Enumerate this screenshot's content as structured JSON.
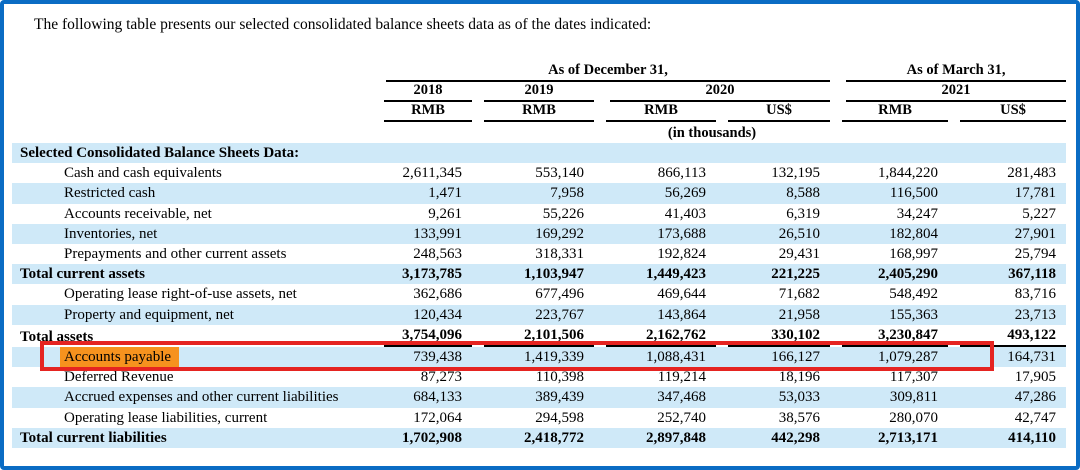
{
  "intro_text": "The following table presents our selected consolidated balance sheets data as of the dates indicated:",
  "table": {
    "group_headers": [
      {
        "label": "As of December 31,"
      },
      {
        "label": "As of March 31,"
      }
    ],
    "year_headers": [
      {
        "label": "2018"
      },
      {
        "label": "2019"
      },
      {
        "label": "2020"
      },
      {
        "label": "2021"
      }
    ],
    "currency_headers": [
      "RMB",
      "RMB",
      "RMB",
      "US$",
      "RMB",
      "US$"
    ],
    "units_note": "(in thousands)",
    "rows": [
      {
        "label": "Selected Consolidated Balance Sheets Data:",
        "indent": 0,
        "bold": true,
        "shaded": true,
        "underline": false,
        "highlight": false,
        "wrap": false,
        "values": [
          "",
          "",
          "",
          "",
          "",
          ""
        ]
      },
      {
        "label": "Cash and cash equivalents",
        "indent": 1,
        "bold": false,
        "shaded": false,
        "underline": false,
        "highlight": false,
        "wrap": false,
        "values": [
          "2,611,345",
          "553,140",
          "866,113",
          "132,195",
          "1,844,220",
          "281,483"
        ]
      },
      {
        "label": "Restricted cash",
        "indent": 1,
        "bold": false,
        "shaded": true,
        "underline": false,
        "highlight": false,
        "wrap": false,
        "values": [
          "1,471",
          "7,958",
          "56,269",
          "8,588",
          "116,500",
          "17,781"
        ]
      },
      {
        "label": "Accounts receivable, net",
        "indent": 1,
        "bold": false,
        "shaded": false,
        "underline": false,
        "highlight": false,
        "wrap": false,
        "values": [
          "9,261",
          "55,226",
          "41,403",
          "6,319",
          "34,247",
          "5,227"
        ]
      },
      {
        "label": "Inventories, net",
        "indent": 1,
        "bold": false,
        "shaded": true,
        "underline": false,
        "highlight": false,
        "wrap": false,
        "values": [
          "133,991",
          "169,292",
          "173,688",
          "26,510",
          "182,804",
          "27,901"
        ]
      },
      {
        "label": "Prepayments and other current assets",
        "indent": 1,
        "bold": false,
        "shaded": false,
        "underline": false,
        "highlight": false,
        "wrap": false,
        "values": [
          "248,563",
          "318,331",
          "192,824",
          "29,431",
          "168,997",
          "25,794"
        ]
      },
      {
        "label": "Total current assets",
        "indent": 0,
        "bold": true,
        "shaded": true,
        "underline": false,
        "highlight": false,
        "wrap": false,
        "values": [
          "3,173,785",
          "1,103,947",
          "1,449,423",
          "221,225",
          "2,405,290",
          "367,118"
        ]
      },
      {
        "label": "Operating lease right-of-use assets, net",
        "indent": 1,
        "bold": false,
        "shaded": false,
        "underline": false,
        "highlight": false,
        "wrap": false,
        "values": [
          "362,686",
          "677,496",
          "469,644",
          "71,682",
          "548,492",
          "83,716"
        ]
      },
      {
        "label": "Property and equipment, net",
        "indent": 1,
        "bold": false,
        "shaded": true,
        "underline": false,
        "highlight": false,
        "wrap": false,
        "values": [
          "120,434",
          "223,767",
          "143,864",
          "21,958",
          "155,363",
          "23,713"
        ]
      },
      {
        "label": "Total assets",
        "indent": 0,
        "bold": true,
        "shaded": false,
        "underline": true,
        "highlight": false,
        "wrap": false,
        "values": [
          "3,754,096",
          "2,101,506",
          "2,162,762",
          "330,102",
          "3,230,847",
          "493,122"
        ]
      },
      {
        "label": "Accounts payable",
        "indent": 1,
        "bold": false,
        "shaded": true,
        "underline": false,
        "highlight": true,
        "wrap": false,
        "values": [
          "739,438",
          "1,419,339",
          "1,088,431",
          "166,127",
          "1,079,287",
          "164,731"
        ]
      },
      {
        "label": "Deferred Revenue",
        "indent": 1,
        "bold": false,
        "shaded": false,
        "underline": false,
        "highlight": false,
        "wrap": false,
        "values": [
          "87,273",
          "110,398",
          "119,214",
          "18,196",
          "117,307",
          "17,905"
        ]
      },
      {
        "label": "Accrued expenses and other current liabilities",
        "indent": 1,
        "bold": false,
        "shaded": true,
        "underline": false,
        "highlight": false,
        "wrap": true,
        "values": [
          "684,133",
          "389,439",
          "347,468",
          "53,033",
          "309,811",
          "47,286"
        ]
      },
      {
        "label": "Operating lease liabilities, current",
        "indent": 1,
        "bold": false,
        "shaded": false,
        "underline": false,
        "highlight": false,
        "wrap": false,
        "values": [
          "172,064",
          "294,598",
          "252,740",
          "38,576",
          "280,070",
          "42,747"
        ]
      },
      {
        "label": "Total current liabilities",
        "indent": 0,
        "bold": true,
        "shaded": true,
        "underline": false,
        "highlight": false,
        "wrap": false,
        "values": [
          "1,702,908",
          "2,418,772",
          "2,897,848",
          "442,298",
          "2,713,171",
          "414,110"
        ]
      }
    ]
  },
  "annotation": {
    "highlighted_label": "Accounts payable"
  },
  "colors": {
    "page_border": "#0a6cc4",
    "row_shade": "#cfe9f8",
    "red_box": "#e52421",
    "orange_highlight": "#f6921e"
  }
}
